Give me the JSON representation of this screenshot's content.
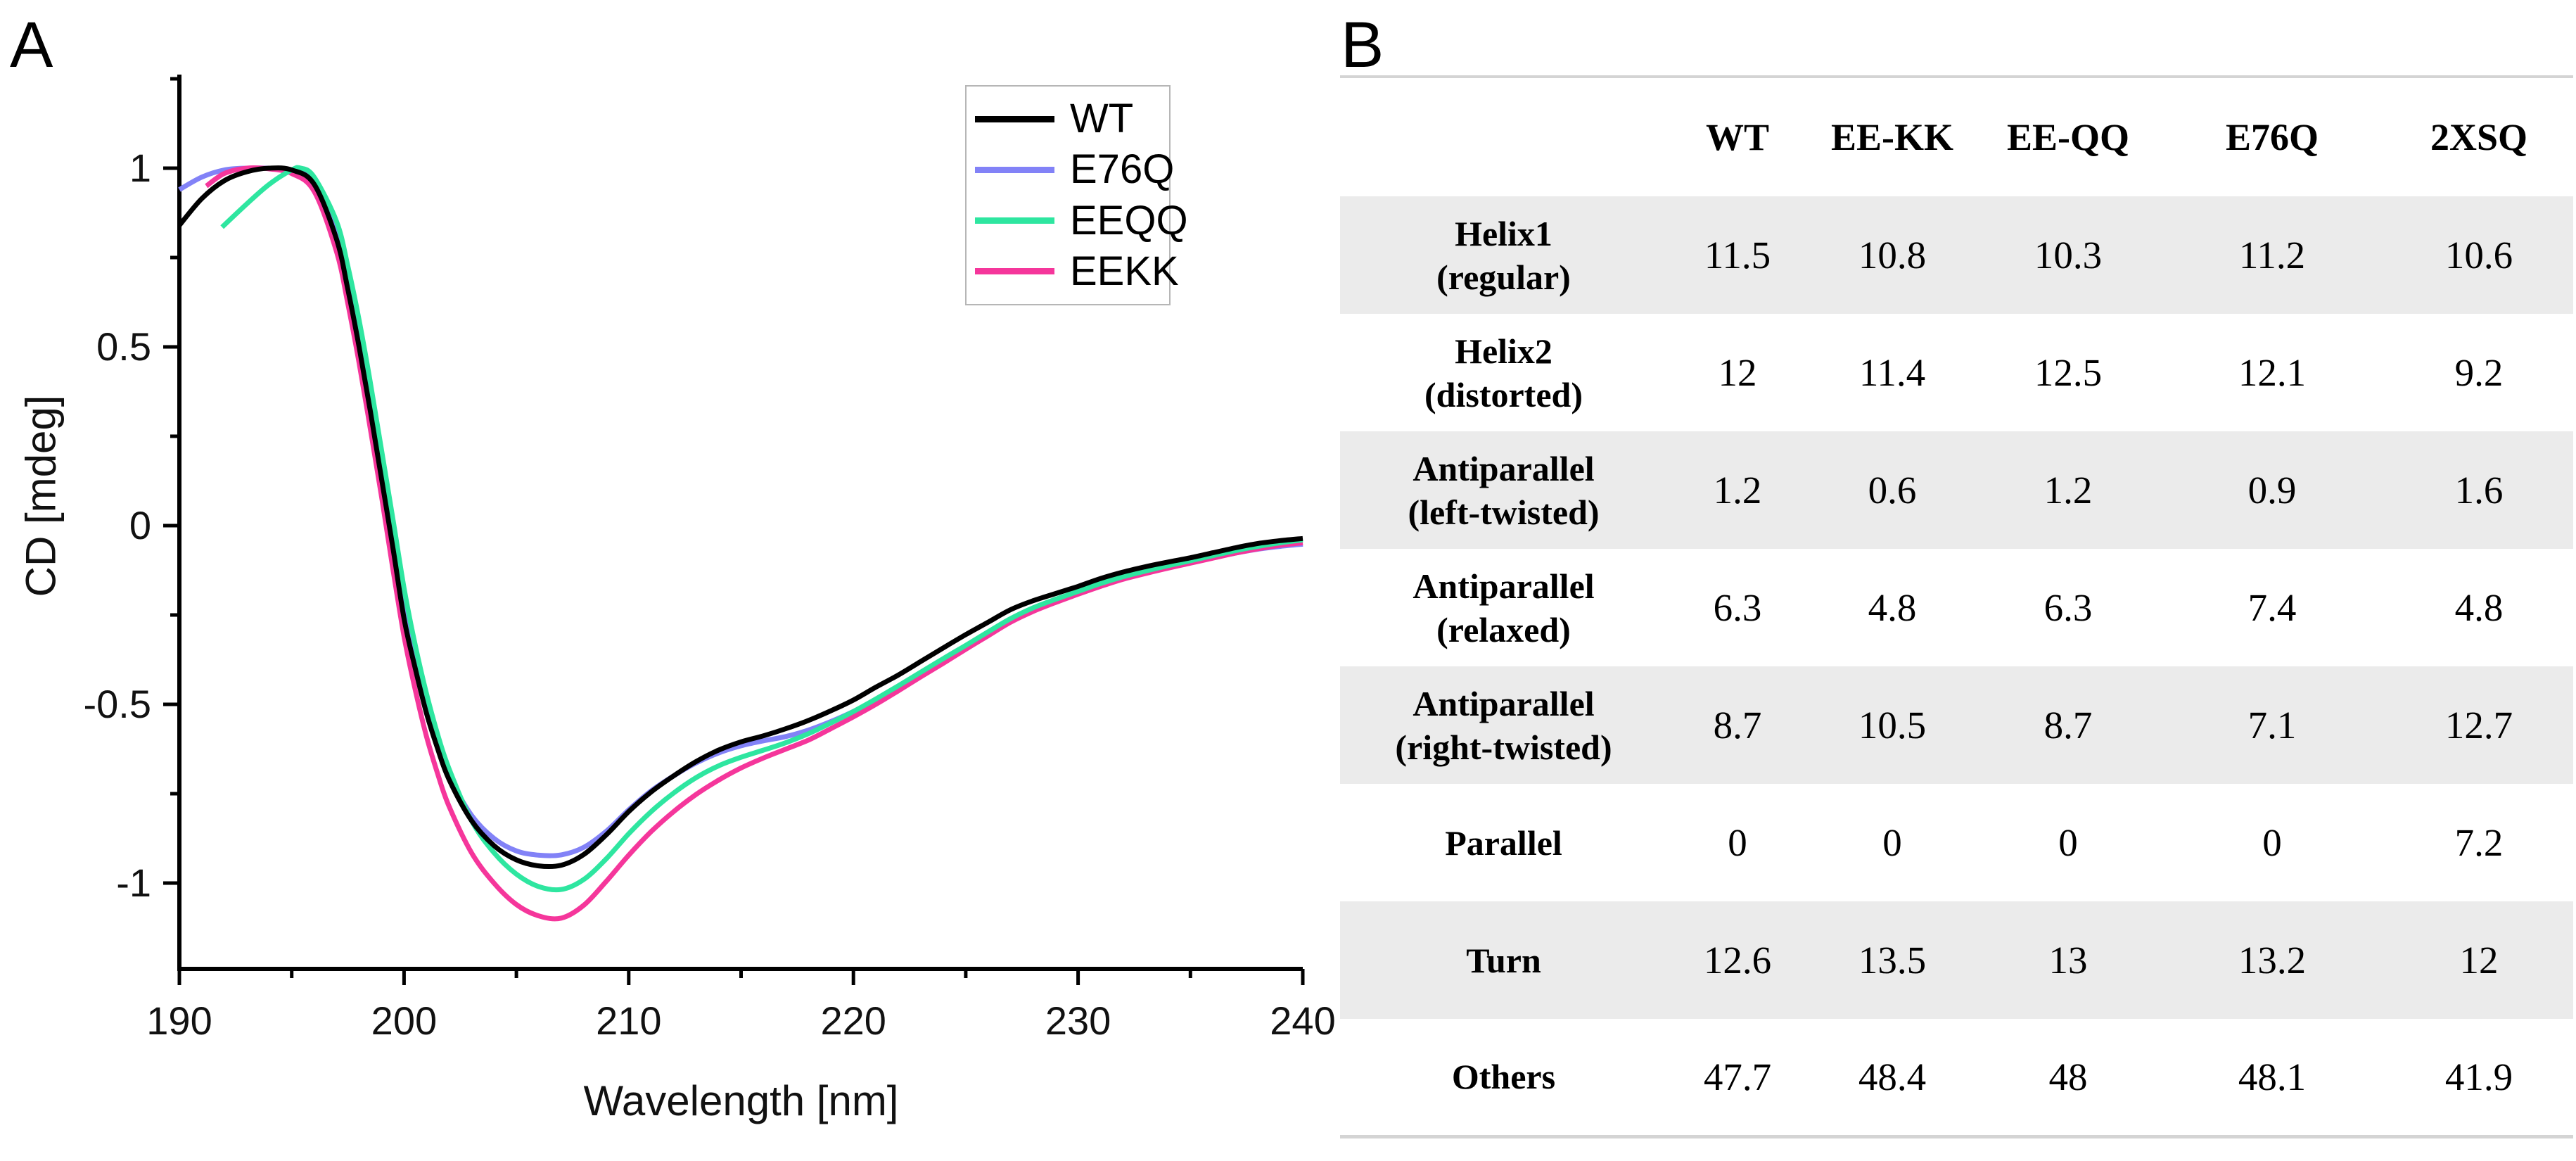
{
  "panel_a": {
    "label": "A"
  },
  "chart_data": {
    "type": "line",
    "title": "",
    "xlabel": "Wavelength [nm]",
    "ylabel": "CD [mdeg]",
    "xlim": [
      190,
      240
    ],
    "ylim": [
      -1.24,
      1.26
    ],
    "x_major_ticks": [
      190,
      200,
      210,
      220,
      230,
      240
    ],
    "x_major_tick_labels": [
      "190",
      "200",
      "210",
      "220",
      "230",
      "240"
    ],
    "x_minor_ticks": [
      195,
      205,
      215,
      225,
      235
    ],
    "y_major_ticks": [
      1,
      0.5,
      0,
      -0.5,
      -1
    ],
    "y_major_tick_labels": [
      "1",
      "0.5",
      "0",
      "-0.5",
      "-1"
    ],
    "y_minor_ticks": [
      1.25,
      0.75,
      0.25,
      -0.25,
      -0.75
    ],
    "grid": false,
    "legend_position": "top-right",
    "series": [
      {
        "name": "WT",
        "color": "#000000",
        "points": [
          [
            190,
            0.84
          ],
          [
            191,
            0.915
          ],
          [
            192,
            0.965
          ],
          [
            193,
            0.99
          ],
          [
            194,
            1.0
          ],
          [
            195,
            0.995
          ],
          [
            196,
            0.955
          ],
          [
            197,
            0.8
          ],
          [
            197.5,
            0.66
          ],
          [
            198,
            0.5
          ],
          [
            198.5,
            0.32
          ],
          [
            199,
            0.13
          ],
          [
            199.5,
            -0.06
          ],
          [
            200,
            -0.26
          ],
          [
            200.5,
            -0.4
          ],
          [
            201,
            -0.525
          ],
          [
            201.5,
            -0.625
          ],
          [
            202,
            -0.71
          ],
          [
            203,
            -0.825
          ],
          [
            204,
            -0.895
          ],
          [
            205,
            -0.935
          ],
          [
            206,
            -0.952
          ],
          [
            207,
            -0.95
          ],
          [
            208,
            -0.92
          ],
          [
            209,
            -0.865
          ],
          [
            210,
            -0.8
          ],
          [
            211,
            -0.745
          ],
          [
            212,
            -0.7
          ],
          [
            213,
            -0.66
          ],
          [
            214,
            -0.628
          ],
          [
            215,
            -0.605
          ],
          [
            216,
            -0.588
          ],
          [
            217,
            -0.568
          ],
          [
            218,
            -0.545
          ],
          [
            219,
            -0.518
          ],
          [
            220,
            -0.488
          ],
          [
            221,
            -0.452
          ],
          [
            222,
            -0.418
          ],
          [
            223,
            -0.38
          ],
          [
            224,
            -0.342
          ],
          [
            225,
            -0.305
          ],
          [
            226,
            -0.27
          ],
          [
            227,
            -0.235
          ],
          [
            228,
            -0.21
          ],
          [
            229,
            -0.19
          ],
          [
            230,
            -0.17
          ],
          [
            231,
            -0.148
          ],
          [
            232,
            -0.13
          ],
          [
            233,
            -0.115
          ],
          [
            234,
            -0.102
          ],
          [
            235,
            -0.09
          ],
          [
            236,
            -0.076
          ],
          [
            237,
            -0.062
          ],
          [
            238,
            -0.05
          ],
          [
            239,
            -0.042
          ],
          [
            240,
            -0.036
          ]
        ]
      },
      {
        "name": "E76Q",
        "color": "#8282f7",
        "points": [
          [
            190,
            0.94
          ],
          [
            191,
            0.975
          ],
          [
            192,
            0.995
          ],
          [
            193,
            1.0
          ],
          [
            194,
            1.0
          ],
          [
            195,
            0.995
          ],
          [
            196,
            0.96
          ],
          [
            197,
            0.815
          ],
          [
            197.5,
            0.675
          ],
          [
            198,
            0.52
          ],
          [
            198.5,
            0.34
          ],
          [
            199,
            0.15
          ],
          [
            199.5,
            -0.05
          ],
          [
            200,
            -0.245
          ],
          [
            200.5,
            -0.39
          ],
          [
            201,
            -0.515
          ],
          [
            201.5,
            -0.615
          ],
          [
            202,
            -0.7
          ],
          [
            203,
            -0.81
          ],
          [
            204,
            -0.875
          ],
          [
            205,
            -0.91
          ],
          [
            206,
            -0.922
          ],
          [
            207,
            -0.921
          ],
          [
            208,
            -0.9
          ],
          [
            209,
            -0.855
          ],
          [
            210,
            -0.795
          ],
          [
            211,
            -0.742
          ],
          [
            212,
            -0.7
          ],
          [
            213,
            -0.664
          ],
          [
            214,
            -0.636
          ],
          [
            215,
            -0.616
          ],
          [
            216,
            -0.602
          ],
          [
            217,
            -0.59
          ],
          [
            218,
            -0.572
          ],
          [
            219,
            -0.548
          ],
          [
            220,
            -0.52
          ],
          [
            221,
            -0.487
          ],
          [
            222,
            -0.452
          ],
          [
            223,
            -0.415
          ],
          [
            224,
            -0.377
          ],
          [
            225,
            -0.34
          ],
          [
            226,
            -0.302
          ],
          [
            227,
            -0.265
          ],
          [
            228,
            -0.235
          ],
          [
            229,
            -0.212
          ],
          [
            230,
            -0.19
          ],
          [
            231,
            -0.168
          ],
          [
            232,
            -0.148
          ],
          [
            233,
            -0.132
          ],
          [
            234,
            -0.118
          ],
          [
            235,
            -0.104
          ],
          [
            236,
            -0.09
          ],
          [
            237,
            -0.077
          ],
          [
            238,
            -0.066
          ],
          [
            239,
            -0.058
          ],
          [
            240,
            -0.052
          ]
        ]
      },
      {
        "name": "EEQQ",
        "color": "#2ee6a0",
        "points": [
          [
            191.9,
            0.835
          ],
          [
            193,
            0.9
          ],
          [
            194,
            0.955
          ],
          [
            195,
            0.995
          ],
          [
            195.4,
            1.0
          ],
          [
            196,
            0.975
          ],
          [
            197,
            0.85
          ],
          [
            197.5,
            0.725
          ],
          [
            198,
            0.575
          ],
          [
            198.5,
            0.4
          ],
          [
            199,
            0.21
          ],
          [
            199.5,
            0.02
          ],
          [
            200,
            -0.175
          ],
          [
            200.5,
            -0.335
          ],
          [
            201,
            -0.47
          ],
          [
            201.5,
            -0.585
          ],
          [
            202,
            -0.68
          ],
          [
            203,
            -0.825
          ],
          [
            204,
            -0.915
          ],
          [
            205,
            -0.975
          ],
          [
            206,
            -1.01
          ],
          [
            207,
            -1.018
          ],
          [
            208,
            -0.99
          ],
          [
            209,
            -0.932
          ],
          [
            210,
            -0.862
          ],
          [
            211,
            -0.8
          ],
          [
            212,
            -0.748
          ],
          [
            213,
            -0.705
          ],
          [
            214,
            -0.672
          ],
          [
            215,
            -0.648
          ],
          [
            216,
            -0.628
          ],
          [
            217,
            -0.607
          ],
          [
            218,
            -0.582
          ],
          [
            219,
            -0.552
          ],
          [
            220,
            -0.52
          ],
          [
            221,
            -0.485
          ],
          [
            222,
            -0.448
          ],
          [
            223,
            -0.41
          ],
          [
            224,
            -0.372
          ],
          [
            225,
            -0.335
          ],
          [
            226,
            -0.297
          ],
          [
            227,
            -0.26
          ],
          [
            228,
            -0.23
          ],
          [
            229,
            -0.206
          ],
          [
            230,
            -0.184
          ],
          [
            231,
            -0.162
          ],
          [
            232,
            -0.143
          ],
          [
            233,
            -0.127
          ],
          [
            234,
            -0.112
          ],
          [
            235,
            -0.098
          ],
          [
            236,
            -0.084
          ],
          [
            237,
            -0.07
          ],
          [
            238,
            -0.058
          ],
          [
            239,
            -0.048
          ],
          [
            240,
            -0.04
          ]
        ]
      },
      {
        "name": "EEKK",
        "color": "#f5369b",
        "points": [
          [
            191.2,
            0.95
          ],
          [
            192,
            0.985
          ],
          [
            193,
            1.0
          ],
          [
            194,
            0.998
          ],
          [
            195,
            0.985
          ],
          [
            196,
            0.935
          ],
          [
            197,
            0.765
          ],
          [
            197.5,
            0.62
          ],
          [
            198,
            0.455
          ],
          [
            198.5,
            0.27
          ],
          [
            199,
            0.08
          ],
          [
            199.5,
            -0.12
          ],
          [
            200,
            -0.31
          ],
          [
            200.5,
            -0.46
          ],
          [
            201,
            -0.59
          ],
          [
            201.5,
            -0.695
          ],
          [
            202,
            -0.785
          ],
          [
            203,
            -0.915
          ],
          [
            204,
            -1.0
          ],
          [
            205,
            -1.06
          ],
          [
            206,
            -1.092
          ],
          [
            207,
            -1.098
          ],
          [
            208,
            -1.062
          ],
          [
            209,
            -0.995
          ],
          [
            210,
            -0.922
          ],
          [
            211,
            -0.856
          ],
          [
            212,
            -0.8
          ],
          [
            213,
            -0.752
          ],
          [
            214,
            -0.712
          ],
          [
            215,
            -0.678
          ],
          [
            216,
            -0.65
          ],
          [
            217,
            -0.625
          ],
          [
            218,
            -0.6
          ],
          [
            219,
            -0.568
          ],
          [
            220,
            -0.535
          ],
          [
            221,
            -0.5
          ],
          [
            222,
            -0.462
          ],
          [
            223,
            -0.423
          ],
          [
            224,
            -0.385
          ],
          [
            225,
            -0.346
          ],
          [
            226,
            -0.308
          ],
          [
            227,
            -0.27
          ],
          [
            228,
            -0.24
          ],
          [
            229,
            -0.215
          ],
          [
            230,
            -0.192
          ],
          [
            231,
            -0.17
          ],
          [
            232,
            -0.15
          ],
          [
            233,
            -0.134
          ],
          [
            234,
            -0.119
          ],
          [
            235,
            -0.105
          ],
          [
            236,
            -0.091
          ],
          [
            237,
            -0.077
          ],
          [
            238,
            -0.065
          ],
          [
            239,
            -0.055
          ],
          [
            240,
            -0.048
          ]
        ]
      }
    ]
  },
  "panel_b": {
    "label": "B",
    "table": {
      "columns": [
        "WT",
        "EE-KK",
        "EE-QQ",
        "E76Q",
        "2XSQ"
      ],
      "rows": [
        {
          "label_line1": "Helix1",
          "label_line2": "(regular)",
          "values": [
            "11.5",
            "10.8",
            "10.3",
            "11.2",
            "10.6"
          ]
        },
        {
          "label_line1": "Helix2",
          "label_line2": "(distorted)",
          "values": [
            "12",
            "11.4",
            "12.5",
            "12.1",
            "9.2"
          ]
        },
        {
          "label_line1": "Antiparallel",
          "label_line2": "(left-twisted)",
          "values": [
            "1.2",
            "0.6",
            "1.2",
            "0.9",
            "1.6"
          ]
        },
        {
          "label_line1": "Antiparallel",
          "label_line2": "(relaxed)",
          "values": [
            "6.3",
            "4.8",
            "6.3",
            "7.4",
            "4.8"
          ]
        },
        {
          "label_line1": "Antiparallel",
          "label_line2": "(right-twisted)",
          "values": [
            "8.7",
            "10.5",
            "8.7",
            "7.1",
            "12.7"
          ]
        },
        {
          "label_line1": "Parallel",
          "label_line2": "",
          "values": [
            "0",
            "0",
            "0",
            "0",
            "7.2"
          ]
        },
        {
          "label_line1": "Turn",
          "label_line2": "",
          "values": [
            "12.6",
            "13.5",
            "13",
            "13.2",
            "12"
          ]
        },
        {
          "label_line1": "Others",
          "label_line2": "",
          "values": [
            "47.7",
            "48.4",
            "48",
            "48.1",
            "41.9"
          ]
        }
      ]
    }
  },
  "colors": {
    "row_shade": "#ebebeb",
    "table_rule": "#d4d4d4",
    "legend_border": "#b6b6b6"
  }
}
